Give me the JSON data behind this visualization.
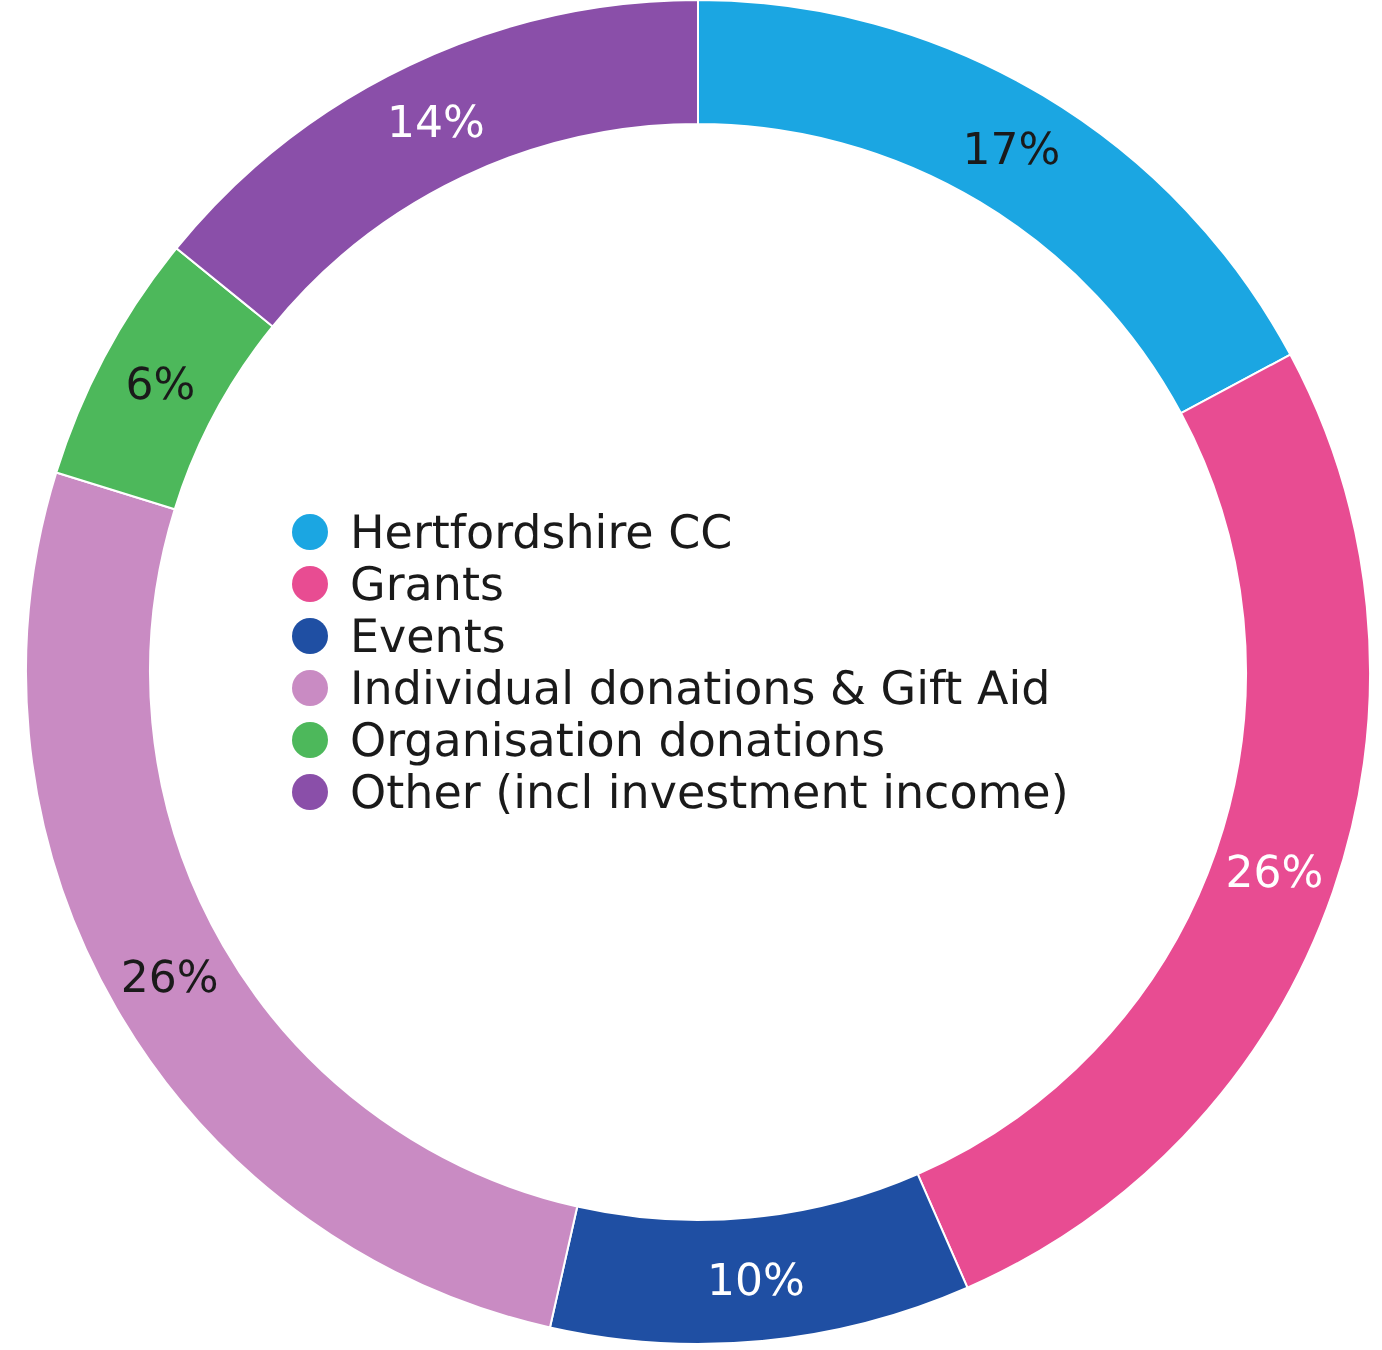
{
  "chart_data": {
    "type": "donut",
    "categories": [
      "Hertfordshire CC",
      "Grants",
      "Events",
      "Individual donations & Gift Aid",
      "Organisation donations",
      "Other (incl investment income)"
    ],
    "values": [
      17,
      26,
      10,
      26,
      6,
      14
    ],
    "value_labels": [
      "17%",
      "26%",
      "10%",
      "26%",
      "6%",
      "14%"
    ],
    "colors": [
      "#1ba6e2",
      "#e84c92",
      "#1f4fa3",
      "#c98bc3",
      "#4db85b",
      "#8a4fa9"
    ],
    "legend": "center"
  }
}
